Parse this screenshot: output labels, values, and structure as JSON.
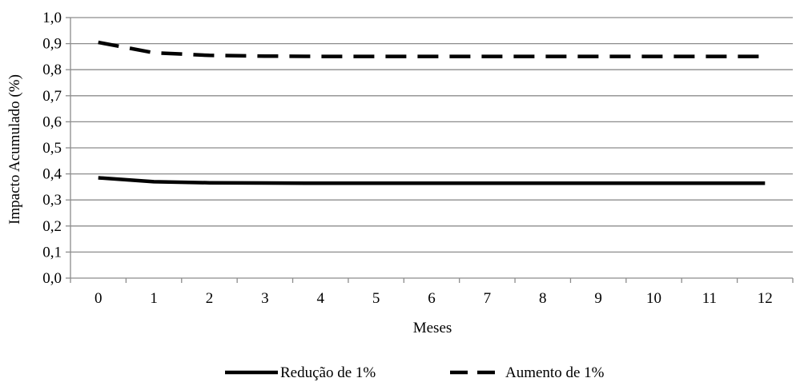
{
  "chart_data": {
    "type": "line",
    "title": "",
    "xlabel": "Meses",
    "ylabel": "Impacto Acumulado (%)",
    "categories": [
      "0",
      "1",
      "2",
      "3",
      "4",
      "5",
      "6",
      "7",
      "8",
      "9",
      "10",
      "11",
      "12"
    ],
    "ylim": [
      0,
      1
    ],
    "y_ticks": [
      "0,0",
      "0,1",
      "0,2",
      "0,3",
      "0,4",
      "0,5",
      "0,6",
      "0,7",
      "0,8",
      "0,9",
      "1,0"
    ],
    "grid": true,
    "legend_position": "bottom",
    "series": [
      {
        "name": "Redução de 1%",
        "style": "solid",
        "color": "#000000",
        "values": [
          0.385,
          0.37,
          0.366,
          0.365,
          0.364,
          0.364,
          0.364,
          0.364,
          0.364,
          0.364,
          0.364,
          0.364,
          0.364
        ]
      },
      {
        "name": "Aumento de 1%",
        "style": "dashed",
        "color": "#000000",
        "values": [
          0.905,
          0.865,
          0.855,
          0.852,
          0.851,
          0.851,
          0.851,
          0.851,
          0.851,
          0.851,
          0.851,
          0.851,
          0.851
        ]
      }
    ]
  }
}
